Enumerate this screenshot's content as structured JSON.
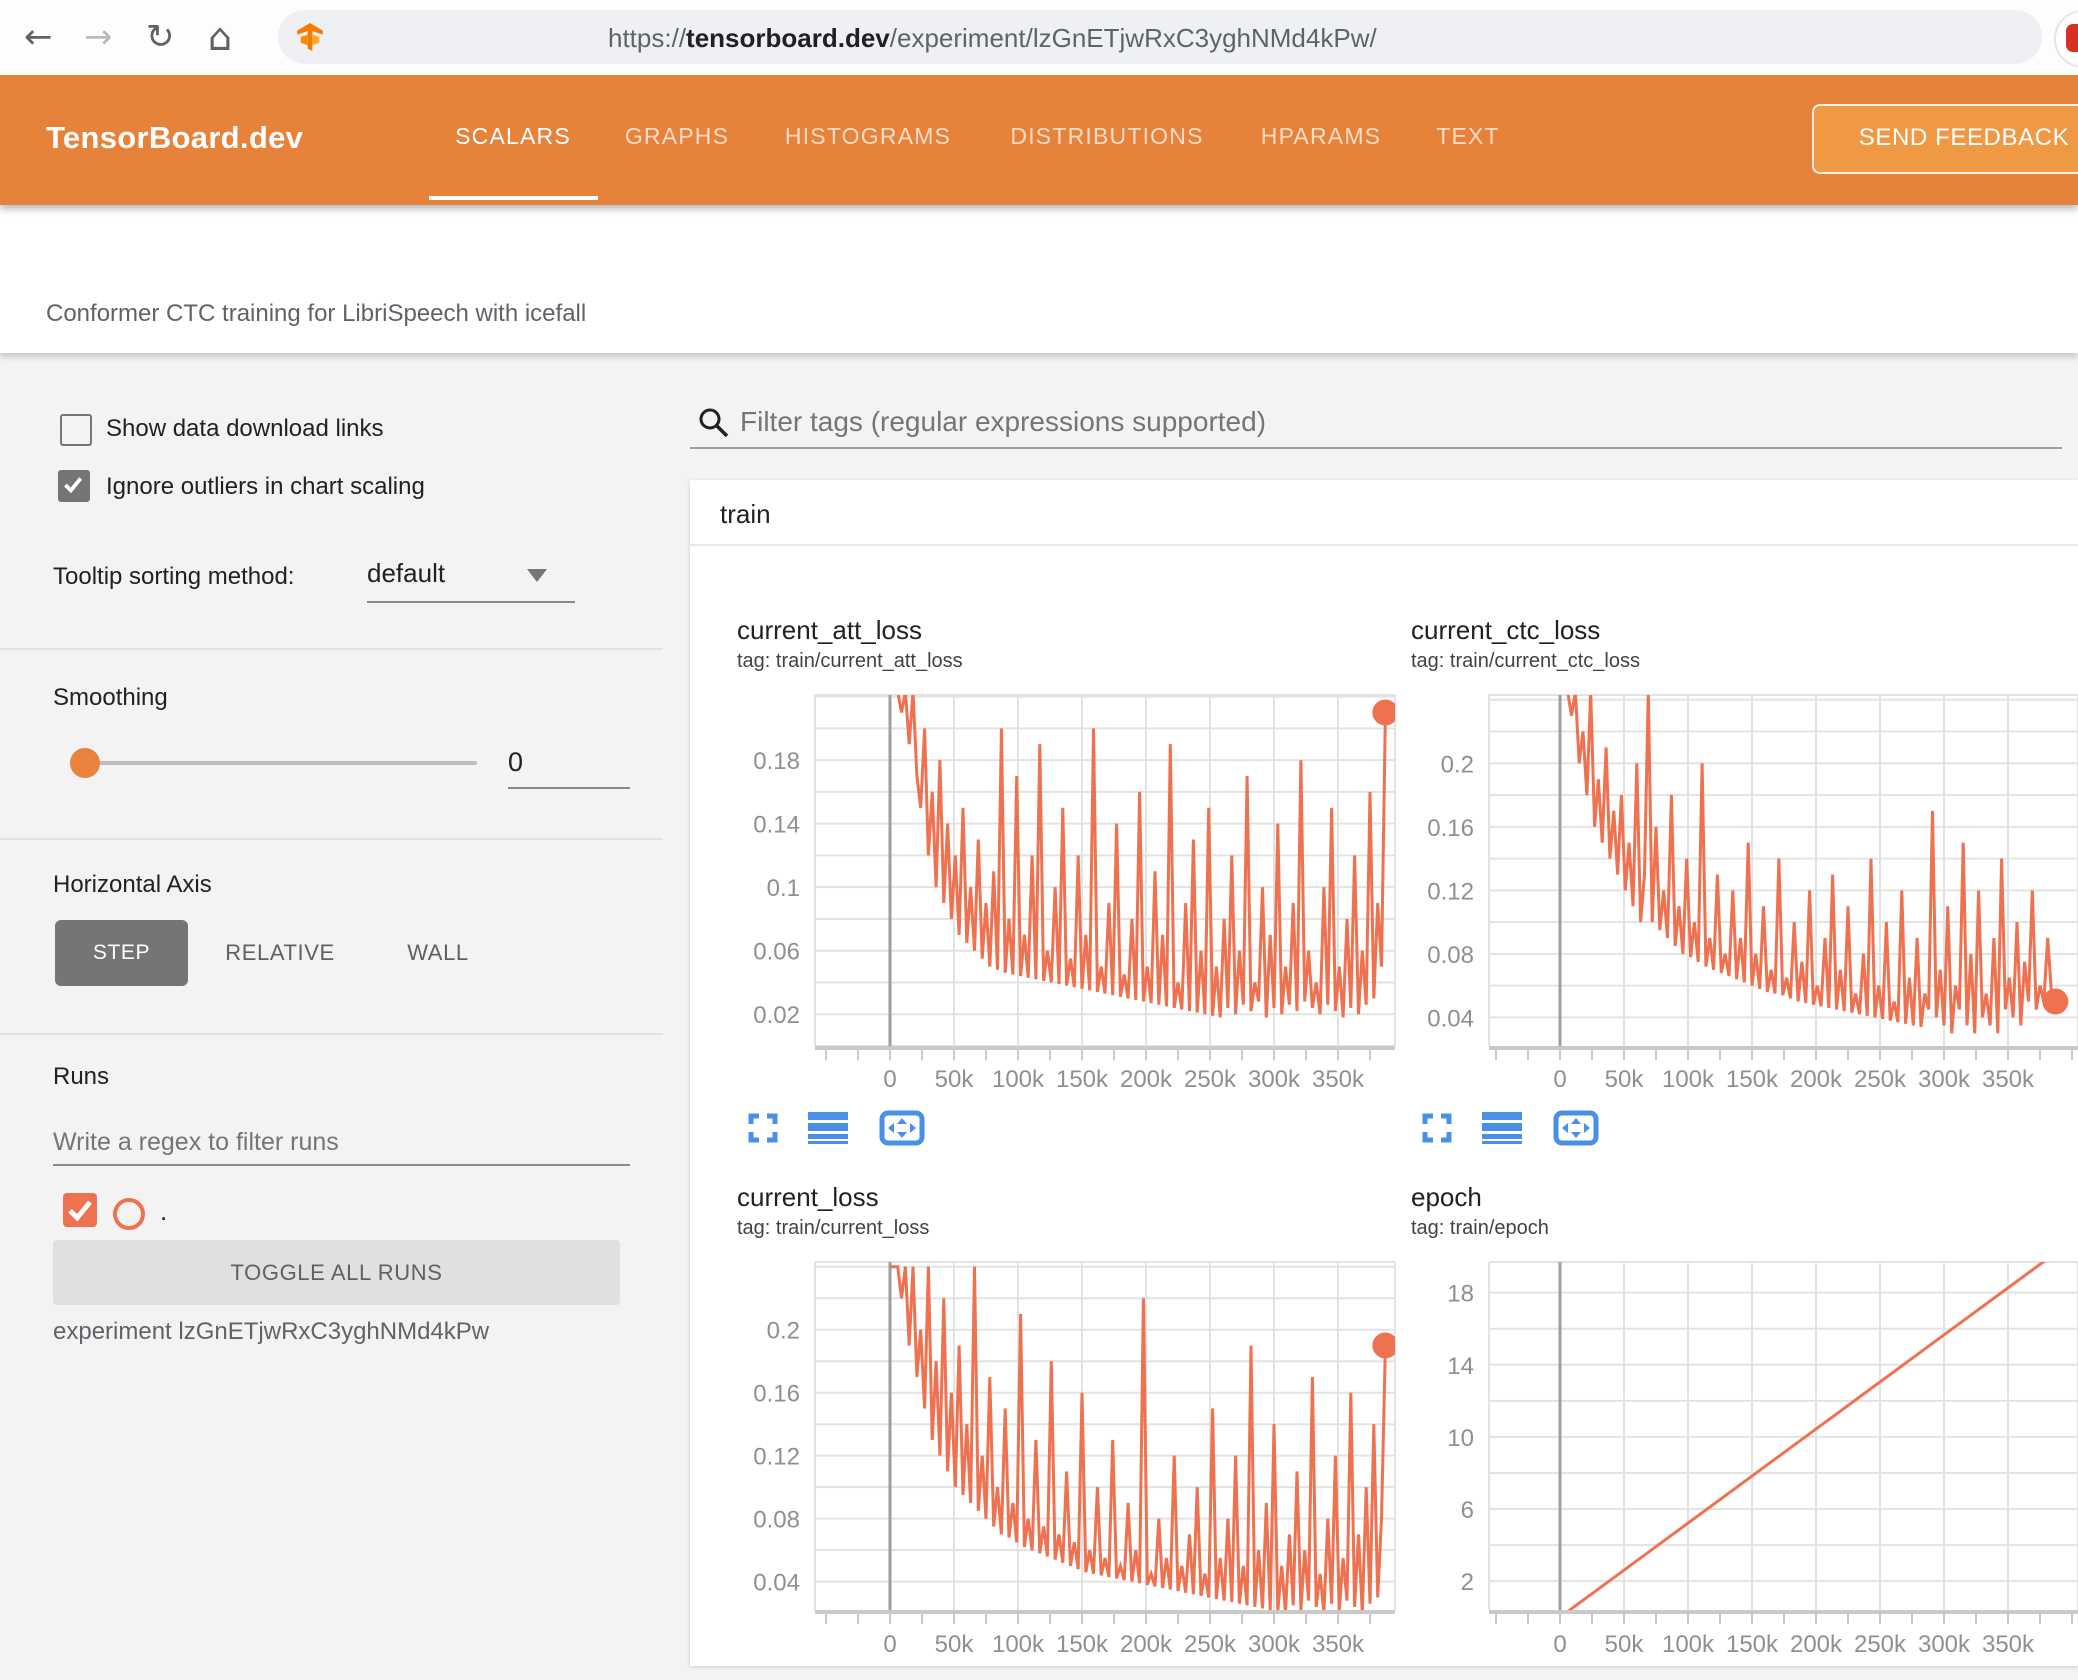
{
  "browser": {
    "url": {
      "protocol": "https://",
      "domain": "tensorboard.dev",
      "path": "/experiment/lzGnETjwRxC3yghNMd4kPw/"
    },
    "glyphs": {
      "back": "←",
      "forward": "→",
      "reload": "↻",
      "home": "⌂"
    }
  },
  "header": {
    "logo": "TensorBoard.dev",
    "tabs": [
      {
        "label": "SCALARS",
        "active": true
      },
      {
        "label": "GRAPHS",
        "active": false
      },
      {
        "label": "HISTOGRAMS",
        "active": false
      },
      {
        "label": "DISTRIBUTIONS",
        "active": false
      },
      {
        "label": "HPARAMS",
        "active": false
      },
      {
        "label": "TEXT",
        "active": false
      }
    ],
    "feedback_button": "SEND FEEDBACK"
  },
  "experiment_title": "Conformer CTC training for LibriSpeech with icefall",
  "sidebar": {
    "show_download": {
      "label": "Show data download links",
      "checked": false
    },
    "ignore_outliers": {
      "label": "Ignore outliers in chart scaling",
      "checked": true
    },
    "tooltip_sort": {
      "label": "Tooltip sorting method:",
      "value": "default"
    },
    "smoothing": {
      "label": "Smoothing",
      "value": "0"
    },
    "horizontal_axis": {
      "label": "Horizontal Axis",
      "options": [
        "STEP",
        "RELATIVE",
        "WALL"
      ],
      "selected": "STEP"
    },
    "runs": {
      "label": "Runs",
      "filter_placeholder": "Write a regex to filter runs",
      "run_name": ".",
      "run_checked": true,
      "toggle_button": "TOGGLE ALL RUNS",
      "experiment_note": "experiment lzGnETjwRxC3yghNMd4kPw"
    }
  },
  "main": {
    "filter_placeholder": "Filter tags (regular expressions supported)",
    "card_title": "train"
  },
  "colors": {
    "header_orange": "#e7823a",
    "chart_line": "#ee7150",
    "icon_blue": "#4a90e8",
    "grid": "#e3e3e3",
    "axis": "#9e9e9e"
  },
  "chart_data": [
    {
      "type": "line",
      "title": "current_att_loss",
      "tag": "tag: train/current_att_loss",
      "color": "#ee7150",
      "x_tick_values": [
        0,
        50000,
        100000,
        150000,
        200000,
        250000,
        300000,
        350000
      ],
      "x_tick_labels": [
        "0",
        "50k",
        "100k",
        "150k",
        "200k",
        "250k",
        "300k",
        "350k"
      ],
      "y_tick_values": [
        0.02,
        0.06,
        0.1,
        0.14,
        0.18
      ],
      "y_tick_labels": [
        "0.02",
        "0.06",
        "0.1",
        "0.14",
        "0.18"
      ],
      "y_grid_step": 0.02,
      "y_domain": [
        0.0,
        0.221
      ],
      "x_start": 0,
      "x_step": 3000,
      "end_dot": true,
      "values": [
        0.223,
        0.223,
        0.223,
        0.21,
        0.223,
        0.19,
        0.223,
        0.17,
        0.15,
        0.2,
        0.12,
        0.16,
        0.1,
        0.18,
        0.09,
        0.14,
        0.08,
        0.12,
        0.07,
        0.15,
        0.065,
        0.1,
        0.06,
        0.13,
        0.055,
        0.09,
        0.05,
        0.11,
        0.048,
        0.2,
        0.046,
        0.08,
        0.045,
        0.17,
        0.044,
        0.07,
        0.043,
        0.12,
        0.042,
        0.19,
        0.041,
        0.06,
        0.04,
        0.1,
        0.039,
        0.15,
        0.038,
        0.055,
        0.037,
        0.12,
        0.036,
        0.07,
        0.035,
        0.2,
        0.034,
        0.05,
        0.033,
        0.09,
        0.032,
        0.14,
        0.031,
        0.045,
        0.03,
        0.08,
        0.029,
        0.16,
        0.028,
        0.05,
        0.027,
        0.11,
        0.026,
        0.07,
        0.025,
        0.19,
        0.024,
        0.04,
        0.023,
        0.09,
        0.022,
        0.13,
        0.021,
        0.06,
        0.02,
        0.15,
        0.019,
        0.05,
        0.018,
        0.08,
        0.024,
        0.12,
        0.02,
        0.06,
        0.026,
        0.17,
        0.022,
        0.04,
        0.028,
        0.1,
        0.018,
        0.07,
        0.024,
        0.14,
        0.02,
        0.05,
        0.026,
        0.09,
        0.022,
        0.18,
        0.028,
        0.06,
        0.024,
        0.04,
        0.02,
        0.1,
        0.026,
        0.15,
        0.022,
        0.05,
        0.018,
        0.08,
        0.024,
        0.12,
        0.02,
        0.06,
        0.026,
        0.16,
        0.03,
        0.09,
        0.05,
        0.21
      ]
    },
    {
      "type": "line",
      "title": "current_ctc_loss",
      "tag": "tag: train/current_ctc_loss",
      "color": "#ee7150",
      "x_tick_values": [
        0,
        50000,
        100000,
        150000,
        200000,
        250000,
        300000,
        350000
      ],
      "x_tick_labels": [
        "0",
        "50k",
        "100k",
        "150k",
        "200k",
        "250k",
        "300k",
        "350k"
      ],
      "y_tick_values": [
        0.04,
        0.08,
        0.12,
        0.16,
        0.2
      ],
      "y_tick_labels": [
        "0.04",
        "0.08",
        "0.12",
        "0.16",
        "0.2"
      ],
      "y_grid_step": 0.02,
      "y_domain": [
        0.022,
        0.243
      ],
      "x_start": 0,
      "x_step": 3000,
      "end_dot": true,
      "values": [
        0.245,
        0.245,
        0.245,
        0.23,
        0.245,
        0.2,
        0.22,
        0.18,
        0.245,
        0.16,
        0.19,
        0.15,
        0.21,
        0.14,
        0.17,
        0.13,
        0.18,
        0.12,
        0.15,
        0.11,
        0.2,
        0.1,
        0.13,
        0.245,
        0.1,
        0.16,
        0.095,
        0.12,
        0.09,
        0.18,
        0.085,
        0.11,
        0.08,
        0.14,
        0.078,
        0.1,
        0.075,
        0.2,
        0.072,
        0.09,
        0.07,
        0.13,
        0.068,
        0.08,
        0.066,
        0.12,
        0.064,
        0.09,
        0.062,
        0.15,
        0.06,
        0.08,
        0.058,
        0.11,
        0.056,
        0.07,
        0.055,
        0.14,
        0.054,
        0.065,
        0.052,
        0.1,
        0.05,
        0.075,
        0.049,
        0.12,
        0.048,
        0.06,
        0.047,
        0.09,
        0.046,
        0.13,
        0.045,
        0.07,
        0.044,
        0.11,
        0.043,
        0.055,
        0.042,
        0.08,
        0.041,
        0.14,
        0.04,
        0.06,
        0.039,
        0.1,
        0.038,
        0.05,
        0.037,
        0.12,
        0.036,
        0.065,
        0.035,
        0.09,
        0.034,
        0.055,
        0.045,
        0.17,
        0.04,
        0.07,
        0.035,
        0.11,
        0.03,
        0.06,
        0.045,
        0.15,
        0.035,
        0.08,
        0.03,
        0.12,
        0.04,
        0.055,
        0.035,
        0.09,
        0.03,
        0.14,
        0.045,
        0.065,
        0.04,
        0.1,
        0.035,
        0.075,
        0.05,
        0.12,
        0.045,
        0.06,
        0.05,
        0.09,
        0.055,
        0.05
      ]
    },
    {
      "type": "line",
      "title": "current_loss",
      "tag": "tag: train/current_loss",
      "color": "#ee7150",
      "x_tick_values": [
        0,
        50000,
        100000,
        150000,
        200000,
        250000,
        300000,
        350000
      ],
      "x_tick_labels": [
        "0",
        "50k",
        "100k",
        "150k",
        "200k",
        "250k",
        "300k",
        "350k"
      ],
      "y_tick_values": [
        0.04,
        0.08,
        0.12,
        0.16,
        0.2
      ],
      "y_tick_labels": [
        "0.04",
        "0.08",
        "0.12",
        "0.16",
        "0.2"
      ],
      "y_grid_step": 0.02,
      "y_domain": [
        0.022,
        0.243
      ],
      "x_start": 0,
      "x_step": 3000,
      "end_dot": true,
      "values": [
        0.24,
        0.24,
        0.24,
        0.22,
        0.24,
        0.19,
        0.24,
        0.17,
        0.2,
        0.15,
        0.24,
        0.13,
        0.18,
        0.12,
        0.22,
        0.11,
        0.16,
        0.1,
        0.19,
        0.095,
        0.14,
        0.09,
        0.24,
        0.085,
        0.12,
        0.08,
        0.17,
        0.075,
        0.1,
        0.07,
        0.15,
        0.068,
        0.09,
        0.065,
        0.21,
        0.062,
        0.08,
        0.06,
        0.13,
        0.058,
        0.075,
        0.056,
        0.18,
        0.054,
        0.07,
        0.052,
        0.11,
        0.05,
        0.065,
        0.048,
        0.16,
        0.046,
        0.06,
        0.045,
        0.1,
        0.044,
        0.055,
        0.043,
        0.13,
        0.042,
        0.05,
        0.041,
        0.09,
        0.04,
        0.06,
        0.039,
        0.22,
        0.038,
        0.045,
        0.037,
        0.08,
        0.036,
        0.055,
        0.035,
        0.12,
        0.034,
        0.05,
        0.033,
        0.07,
        0.032,
        0.1,
        0.031,
        0.045,
        0.03,
        0.15,
        0.029,
        0.055,
        0.028,
        0.08,
        0.027,
        0.12,
        0.026,
        0.05,
        0.025,
        0.19,
        0.024,
        0.06,
        0.023,
        0.09,
        0.022,
        0.14,
        0.021,
        0.05,
        0.02,
        0.07,
        0.025,
        0.11,
        0.022,
        0.06,
        0.028,
        0.17,
        0.024,
        0.045,
        0.02,
        0.08,
        0.026,
        0.12,
        0.022,
        0.055,
        0.028,
        0.16,
        0.024,
        0.07,
        0.02,
        0.1,
        0.026,
        0.14,
        0.03,
        0.08,
        0.19
      ]
    },
    {
      "type": "line",
      "title": "epoch",
      "tag": "tag: train/epoch",
      "color": "#ee7150",
      "x_tick_values": [
        0,
        50000,
        100000,
        150000,
        200000,
        250000,
        300000,
        350000
      ],
      "x_tick_labels": [
        "0",
        "50k",
        "100k",
        "150k",
        "200k",
        "250k",
        "300k",
        "350k"
      ],
      "y_tick_values": [
        2,
        6,
        10,
        14,
        18
      ],
      "y_tick_labels": [
        "2",
        "6",
        "10",
        "14",
        "18"
      ],
      "y_grid_step": 2,
      "y_domain": [
        0.4,
        19.7
      ],
      "x_start": 0,
      "x_step": 387000,
      "end_dot": false,
      "values": [
        0,
        20.2
      ]
    }
  ]
}
